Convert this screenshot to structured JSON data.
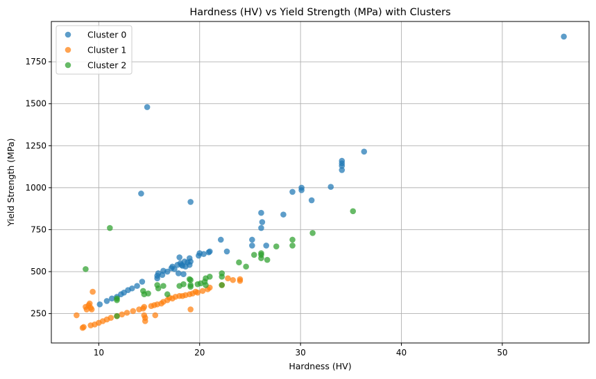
{
  "chart_data": {
    "type": "scatter",
    "title": "Hardness (HV) vs Yield Strength (MPa) with Clusters",
    "xlabel": "Hardness (HV)",
    "ylabel": "Yield Strength (MPa)",
    "xlim": [
      5.3,
      58.6
    ],
    "ylim": [
      75,
      1990
    ],
    "xticks": [
      10,
      20,
      30,
      40,
      50
    ],
    "yticks": [
      250,
      500,
      750,
      1000,
      1250,
      1500,
      1750
    ],
    "grid": true,
    "legend": "top-left",
    "series": [
      {
        "name": "Cluster 0",
        "color": "#1f77b4",
        "points": [
          [
            10.1,
            305
          ],
          [
            10.8,
            325
          ],
          [
            11.3,
            340
          ],
          [
            11.8,
            350
          ],
          [
            12.2,
            365
          ],
          [
            12.5,
            375
          ],
          [
            12.9,
            390
          ],
          [
            13.3,
            400
          ],
          [
            13.8,
            415
          ],
          [
            14.3,
            440
          ],
          [
            14.8,
            1480
          ],
          [
            14.2,
            965
          ],
          [
            15.8,
            460
          ],
          [
            15.9,
            490
          ],
          [
            16.4,
            505
          ],
          [
            16.8,
            500
          ],
          [
            17.2,
            520
          ],
          [
            17.3,
            530
          ],
          [
            17.8,
            540
          ],
          [
            18.0,
            585
          ],
          [
            18.1,
            550
          ],
          [
            18.3,
            535
          ],
          [
            18.5,
            560
          ],
          [
            18.8,
            555
          ],
          [
            19.0,
            580
          ],
          [
            19.1,
            560
          ],
          [
            19.1,
            915
          ],
          [
            18.2,
            540
          ],
          [
            18.6,
            530
          ],
          [
            19.0,
            540
          ],
          [
            19.9,
            595
          ],
          [
            20.0,
            610
          ],
          [
            20.4,
            605
          ],
          [
            20.9,
            615
          ],
          [
            21.0,
            620
          ],
          [
            22.1,
            690
          ],
          [
            22.7,
            620
          ],
          [
            25.2,
            690
          ],
          [
            25.2,
            655
          ],
          [
            26.1,
            850
          ],
          [
            26.2,
            795
          ],
          [
            26.1,
            760
          ],
          [
            26.6,
            655
          ],
          [
            28.3,
            840
          ],
          [
            29.2,
            975
          ],
          [
            30.1,
            985
          ],
          [
            30.1,
            1000
          ],
          [
            31.1,
            925
          ],
          [
            33.0,
            1005
          ],
          [
            34.1,
            1160
          ],
          [
            34.1,
            1145
          ],
          [
            34.1,
            1130
          ],
          [
            34.1,
            1105
          ],
          [
            36.3,
            1215
          ],
          [
            56.1,
            1900
          ],
          [
            15.8,
            475
          ],
          [
            16.3,
            480
          ],
          [
            17.9,
            490
          ],
          [
            18.4,
            485
          ],
          [
            17.5,
            515
          ]
        ]
      },
      {
        "name": "Cluster 1",
        "color": "#ff7f0e",
        "points": [
          [
            7.8,
            240
          ],
          [
            8.4,
            165
          ],
          [
            8.5,
            170
          ],
          [
            8.7,
            290
          ],
          [
            8.8,
            275
          ],
          [
            9.0,
            300
          ],
          [
            9.2,
            285
          ],
          [
            9.1,
            310
          ],
          [
            9.3,
            275
          ],
          [
            9.4,
            380
          ],
          [
            9.2,
            180
          ],
          [
            9.6,
            185
          ],
          [
            10.0,
            195
          ],
          [
            10.4,
            205
          ],
          [
            10.8,
            215
          ],
          [
            11.2,
            225
          ],
          [
            11.8,
            235
          ],
          [
            12.3,
            245
          ],
          [
            12.8,
            255
          ],
          [
            13.4,
            265
          ],
          [
            14.0,
            275
          ],
          [
            14.4,
            280
          ],
          [
            14.5,
            290
          ],
          [
            14.5,
            240
          ],
          [
            14.6,
            225
          ],
          [
            14.6,
            205
          ],
          [
            15.2,
            295
          ],
          [
            15.5,
            300
          ],
          [
            15.6,
            240
          ],
          [
            15.8,
            305
          ],
          [
            16.2,
            310
          ],
          [
            16.4,
            320
          ],
          [
            16.8,
            330
          ],
          [
            17.3,
            340
          ],
          [
            17.6,
            350
          ],
          [
            18.0,
            355
          ],
          [
            18.6,
            360
          ],
          [
            19.0,
            365
          ],
          [
            19.1,
            275
          ],
          [
            19.3,
            370
          ],
          [
            19.8,
            375
          ],
          [
            20.3,
            385
          ],
          [
            20.8,
            395
          ],
          [
            21.0,
            405
          ],
          [
            22.2,
            420
          ],
          [
            22.8,
            460
          ],
          [
            23.3,
            450
          ],
          [
            24.0,
            455
          ],
          [
            24.0,
            445
          ],
          [
            18.3,
            355
          ],
          [
            17.0,
            345
          ],
          [
            19.6,
            380
          ]
        ]
      },
      {
        "name": "Cluster 2",
        "color": "#2ca02c",
        "points": [
          [
            8.7,
            515
          ],
          [
            11.1,
            760
          ],
          [
            11.8,
            235
          ],
          [
            11.8,
            330
          ],
          [
            11.8,
            340
          ],
          [
            14.4,
            385
          ],
          [
            14.5,
            365
          ],
          [
            14.9,
            370
          ],
          [
            15.8,
            420
          ],
          [
            15.9,
            400
          ],
          [
            16.4,
            415
          ],
          [
            16.8,
            365
          ],
          [
            18.0,
            415
          ],
          [
            18.4,
            425
          ],
          [
            19.0,
            455
          ],
          [
            19.1,
            420
          ],
          [
            19.1,
            410
          ],
          [
            19.8,
            425
          ],
          [
            20.1,
            430
          ],
          [
            20.5,
            440
          ],
          [
            20.6,
            460
          ],
          [
            21.0,
            470
          ],
          [
            22.2,
            490
          ],
          [
            22.2,
            470
          ],
          [
            22.2,
            420
          ],
          [
            23.9,
            555
          ],
          [
            24.6,
            530
          ],
          [
            25.4,
            600
          ],
          [
            26.1,
            600
          ],
          [
            26.1,
            580
          ],
          [
            26.1,
            610
          ],
          [
            26.7,
            570
          ],
          [
            27.6,
            650
          ],
          [
            29.2,
            690
          ],
          [
            29.2,
            655
          ],
          [
            31.2,
            730
          ],
          [
            35.2,
            860
          ],
          [
            19.1,
            450
          ],
          [
            20.6,
            420
          ]
        ]
      }
    ]
  }
}
